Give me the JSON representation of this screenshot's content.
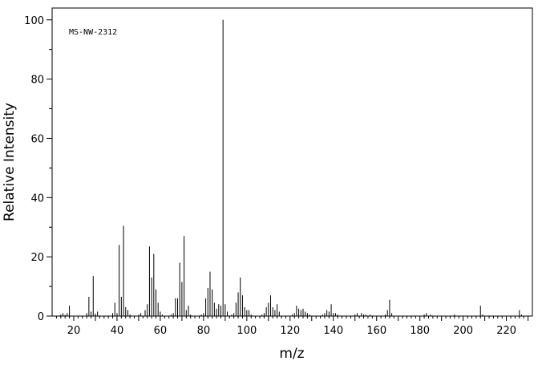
{
  "chart_data": {
    "type": "bar",
    "annotation": "MS-NW-2312",
    "xlabel": "m/z",
    "ylabel": "Relative Intensity",
    "xlim": [
      10,
      232
    ],
    "ylim": [
      0,
      104
    ],
    "x_ticks_major": [
      20,
      40,
      60,
      80,
      100,
      120,
      140,
      160,
      180,
      200,
      220
    ],
    "y_ticks_major": [
      0,
      20,
      40,
      60,
      80,
      100
    ],
    "grid": false,
    "legend": "none",
    "peaks": [
      {
        "mz": 14,
        "intensity": 0.5
      },
      {
        "mz": 15,
        "intensity": 1.0
      },
      {
        "mz": 16,
        "intensity": 0.4
      },
      {
        "mz": 17,
        "intensity": 1.0
      },
      {
        "mz": 18,
        "intensity": 3.5
      },
      {
        "mz": 26,
        "intensity": 1.0
      },
      {
        "mz": 27,
        "intensity": 6.5
      },
      {
        "mz": 28,
        "intensity": 1.5
      },
      {
        "mz": 29,
        "intensity": 13.5
      },
      {
        "mz": 30,
        "intensity": 0.8
      },
      {
        "mz": 31,
        "intensity": 1.5
      },
      {
        "mz": 38,
        "intensity": 1.0
      },
      {
        "mz": 39,
        "intensity": 4.5
      },
      {
        "mz": 40,
        "intensity": 1.0
      },
      {
        "mz": 41,
        "intensity": 24.0
      },
      {
        "mz": 42,
        "intensity": 6.5
      },
      {
        "mz": 43,
        "intensity": 30.5
      },
      {
        "mz": 44,
        "intensity": 3.0
      },
      {
        "mz": 45,
        "intensity": 2.0
      },
      {
        "mz": 46,
        "intensity": 0.5
      },
      {
        "mz": 50,
        "intensity": 0.5
      },
      {
        "mz": 51,
        "intensity": 1.0
      },
      {
        "mz": 53,
        "intensity": 2.0
      },
      {
        "mz": 54,
        "intensity": 4.0
      },
      {
        "mz": 55,
        "intensity": 23.5
      },
      {
        "mz": 56,
        "intensity": 13.0
      },
      {
        "mz": 57,
        "intensity": 21.0
      },
      {
        "mz": 58,
        "intensity": 9.0
      },
      {
        "mz": 59,
        "intensity": 4.5
      },
      {
        "mz": 60,
        "intensity": 1.5
      },
      {
        "mz": 61,
        "intensity": 0.5
      },
      {
        "mz": 65,
        "intensity": 0.5
      },
      {
        "mz": 66,
        "intensity": 1.0
      },
      {
        "mz": 67,
        "intensity": 6.0
      },
      {
        "mz": 68,
        "intensity": 6.0
      },
      {
        "mz": 69,
        "intensity": 18.0
      },
      {
        "mz": 70,
        "intensity": 11.5
      },
      {
        "mz": 71,
        "intensity": 27.0
      },
      {
        "mz": 72,
        "intensity": 2.0
      },
      {
        "mz": 73,
        "intensity": 3.5
      },
      {
        "mz": 74,
        "intensity": 0.5
      },
      {
        "mz": 79,
        "intensity": 0.5
      },
      {
        "mz": 80,
        "intensity": 1.0
      },
      {
        "mz": 81,
        "intensity": 6.0
      },
      {
        "mz": 82,
        "intensity": 9.5
      },
      {
        "mz": 83,
        "intensity": 15.0
      },
      {
        "mz": 84,
        "intensity": 9.0
      },
      {
        "mz": 85,
        "intensity": 4.5
      },
      {
        "mz": 86,
        "intensity": 2.5
      },
      {
        "mz": 87,
        "intensity": 4.0
      },
      {
        "mz": 88,
        "intensity": 3.5
      },
      {
        "mz": 89,
        "intensity": 100.0
      },
      {
        "mz": 90,
        "intensity": 4.0
      },
      {
        "mz": 91,
        "intensity": 1.5
      },
      {
        "mz": 93,
        "intensity": 0.5
      },
      {
        "mz": 94,
        "intensity": 1.0
      },
      {
        "mz": 95,
        "intensity": 4.5
      },
      {
        "mz": 96,
        "intensity": 8.0
      },
      {
        "mz": 97,
        "intensity": 13.0
      },
      {
        "mz": 98,
        "intensity": 7.0
      },
      {
        "mz": 99,
        "intensity": 3.0
      },
      {
        "mz": 100,
        "intensity": 2.0
      },
      {
        "mz": 101,
        "intensity": 2.0
      },
      {
        "mz": 102,
        "intensity": 0.5
      },
      {
        "mz": 107,
        "intensity": 0.5
      },
      {
        "mz": 108,
        "intensity": 1.0
      },
      {
        "mz": 109,
        "intensity": 3.0
      },
      {
        "mz": 110,
        "intensity": 4.5
      },
      {
        "mz": 111,
        "intensity": 7.0
      },
      {
        "mz": 112,
        "intensity": 3.0
      },
      {
        "mz": 113,
        "intensity": 2.0
      },
      {
        "mz": 114,
        "intensity": 4.0
      },
      {
        "mz": 115,
        "intensity": 1.5
      },
      {
        "mz": 121,
        "intensity": 0.5
      },
      {
        "mz": 122,
        "intensity": 1.0
      },
      {
        "mz": 123,
        "intensity": 3.5
      },
      {
        "mz": 124,
        "intensity": 2.5
      },
      {
        "mz": 125,
        "intensity": 2.0
      },
      {
        "mz": 126,
        "intensity": 2.5
      },
      {
        "mz": 127,
        "intensity": 1.5
      },
      {
        "mz": 128,
        "intensity": 1.0
      },
      {
        "mz": 129,
        "intensity": 0.5
      },
      {
        "mz": 135,
        "intensity": 0.5
      },
      {
        "mz": 136,
        "intensity": 1.0
      },
      {
        "mz": 137,
        "intensity": 2.0
      },
      {
        "mz": 138,
        "intensity": 1.5
      },
      {
        "mz": 139,
        "intensity": 4.0
      },
      {
        "mz": 140,
        "intensity": 1.0
      },
      {
        "mz": 141,
        "intensity": 1.0
      },
      {
        "mz": 142,
        "intensity": 0.5
      },
      {
        "mz": 150,
        "intensity": 0.5
      },
      {
        "mz": 151,
        "intensity": 1.0
      },
      {
        "mz": 153,
        "intensity": 1.0
      },
      {
        "mz": 154,
        "intensity": 0.5
      },
      {
        "mz": 155,
        "intensity": 0.5
      },
      {
        "mz": 157,
        "intensity": 0.5
      },
      {
        "mz": 164,
        "intensity": 0.5
      },
      {
        "mz": 165,
        "intensity": 2.0
      },
      {
        "mz": 166,
        "intensity": 5.5
      },
      {
        "mz": 167,
        "intensity": 1.0
      },
      {
        "mz": 182,
        "intensity": 0.5
      },
      {
        "mz": 183,
        "intensity": 1.0
      },
      {
        "mz": 185,
        "intensity": 0.5
      },
      {
        "mz": 196,
        "intensity": 0.5
      },
      {
        "mz": 208,
        "intensity": 3.5
      },
      {
        "mz": 209,
        "intensity": 0.5
      },
      {
        "mz": 226,
        "intensity": 2.0
      },
      {
        "mz": 227,
        "intensity": 0.5
      }
    ]
  }
}
